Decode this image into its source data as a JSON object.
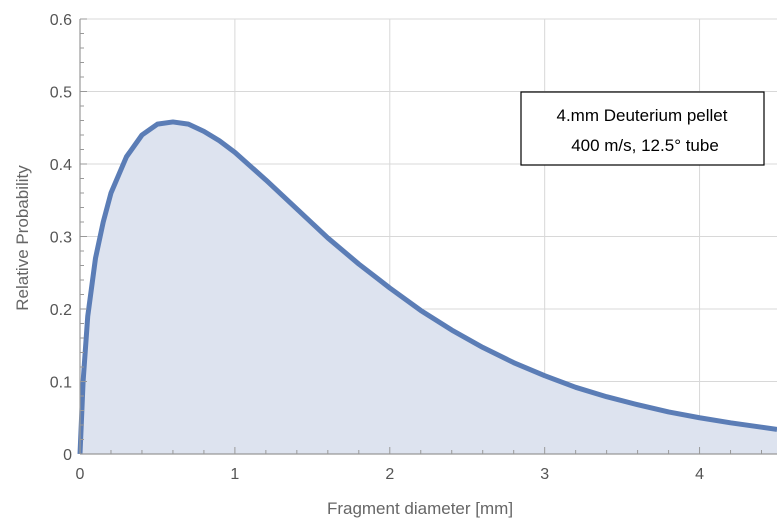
{
  "chart_data": {
    "type": "area",
    "title": "",
    "xlabel": "Fragment diameter [mm]",
    "ylabel": "Relative Probability",
    "xlim": [
      0,
      4.5
    ],
    "ylim": [
      0,
      0.6
    ],
    "x_ticks": [
      0,
      1,
      2,
      3,
      4
    ],
    "x_tick_labels": [
      "0",
      "1",
      "2",
      "3",
      "4"
    ],
    "y_ticks": [
      0,
      0.1,
      0.2,
      0.3,
      0.4,
      0.5,
      0.6
    ],
    "y_tick_labels": [
      "0",
      "0.1",
      "0.2",
      "0.3",
      "0.4",
      "0.5",
      "0.6"
    ],
    "grid": true,
    "series": [
      {
        "color": "#5b7db6",
        "fill": "#dde3ef",
        "x": [
          0,
          0.02,
          0.05,
          0.1,
          0.15,
          0.2,
          0.3,
          0.4,
          0.5,
          0.6,
          0.7,
          0.8,
          0.9,
          1.0,
          1.2,
          1.4,
          1.6,
          1.8,
          2.0,
          2.2,
          2.4,
          2.6,
          2.8,
          3.0,
          3.2,
          3.4,
          3.6,
          3.8,
          4.0,
          4.2,
          4.4,
          4.5
        ],
        "y": [
          0,
          0.1,
          0.19,
          0.27,
          0.32,
          0.36,
          0.41,
          0.44,
          0.455,
          0.458,
          0.455,
          0.445,
          0.432,
          0.416,
          0.378,
          0.338,
          0.298,
          0.262,
          0.229,
          0.198,
          0.171,
          0.147,
          0.126,
          0.108,
          0.092,
          0.079,
          0.068,
          0.058,
          0.05,
          0.043,
          0.037,
          0.034
        ]
      }
    ],
    "annotation": {
      "line1": "4.mm Deuterium pellet",
      "line2": "400 m/s, 12.5° tube"
    }
  }
}
